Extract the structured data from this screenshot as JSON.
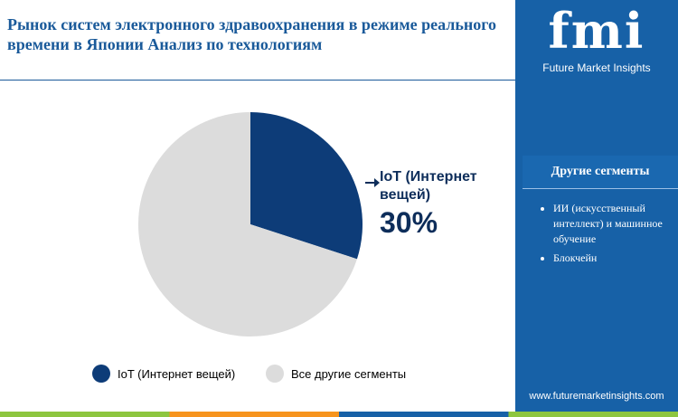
{
  "chart_data": {
    "type": "pie",
    "title": "Рынок систем электронного здравоохранения в режиме реального времени в Японии Анализ по технологиям",
    "categories": [
      "IoT (Интернет вещей)",
      "Все другие сегменты"
    ],
    "values": [
      30,
      70
    ],
    "value_labels": [
      "30%",
      null
    ],
    "colors": [
      "#0d3c78",
      "#dcdcdc"
    ]
  },
  "sidebar": {
    "logo": "fmi",
    "brand": "Future Market Insights",
    "heading": "Другие сегменты",
    "items": [
      "ИИ (искусственный интеллект) и машинное обучение",
      "Блокчейн"
    ],
    "website": "www.futuremarketinsights.com"
  }
}
